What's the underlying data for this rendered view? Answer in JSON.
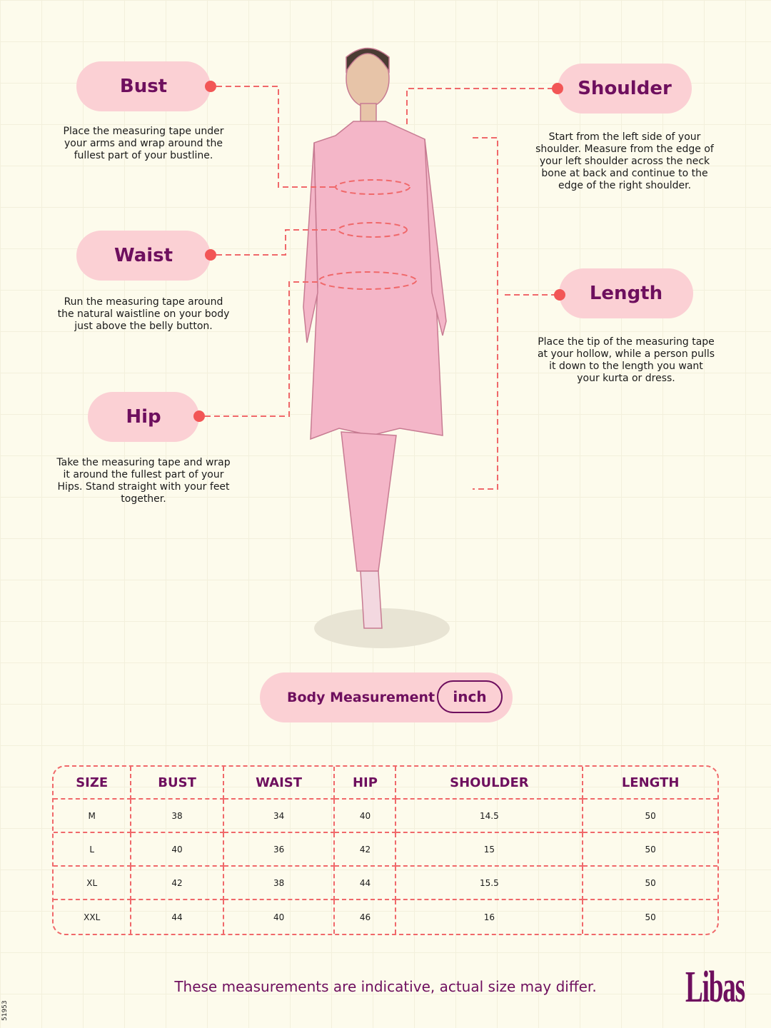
{
  "labels": {
    "bust": {
      "title": "Bust",
      "desc": "Place the measuring tape under your arms and wrap around the fullest part of your bustline."
    },
    "waist": {
      "title": "Waist",
      "desc": "Run the measuring tape around the natural waistline on your body just above the belly button."
    },
    "hip": {
      "title": "Hip",
      "desc": "Take the measuring tape and wrap it around the fullest part of your Hips. Stand straight with your feet together."
    },
    "shoulder": {
      "title": "Shoulder",
      "desc": "Start from the left side of your shoulder. Measure from the edge of your left shoulder across the neck bone at back and continue to the edge of the right shoulder."
    },
    "length": {
      "title": "Length",
      "desc": "Place the tip of the measuring tape at your hollow, while a person pulls it down to the length you want your kurta or dress."
    }
  },
  "body_measurement": {
    "label": "Body Measurement",
    "unit": "inch"
  },
  "table": {
    "headers": [
      "SIZE",
      "BUST",
      "WAIST",
      "HIP",
      "SHOULDER",
      "LENGTH"
    ],
    "rows": [
      [
        "M",
        "38",
        "34",
        "40",
        "14.5",
        "50"
      ],
      [
        "L",
        "40",
        "36",
        "42",
        "15",
        "50"
      ],
      [
        "XL",
        "42",
        "38",
        "44",
        "15.5",
        "50"
      ],
      [
        "XXL",
        "44",
        "40",
        "46",
        "16",
        "50"
      ]
    ]
  },
  "footer": "These measurements are indicative, actual size may differ.",
  "brand": "Libas",
  "code": "51953",
  "colors": {
    "accent": "#6e0f5e",
    "pill": "#fbd0d4",
    "dash": "#f0686a",
    "background": "#fdfbec"
  }
}
